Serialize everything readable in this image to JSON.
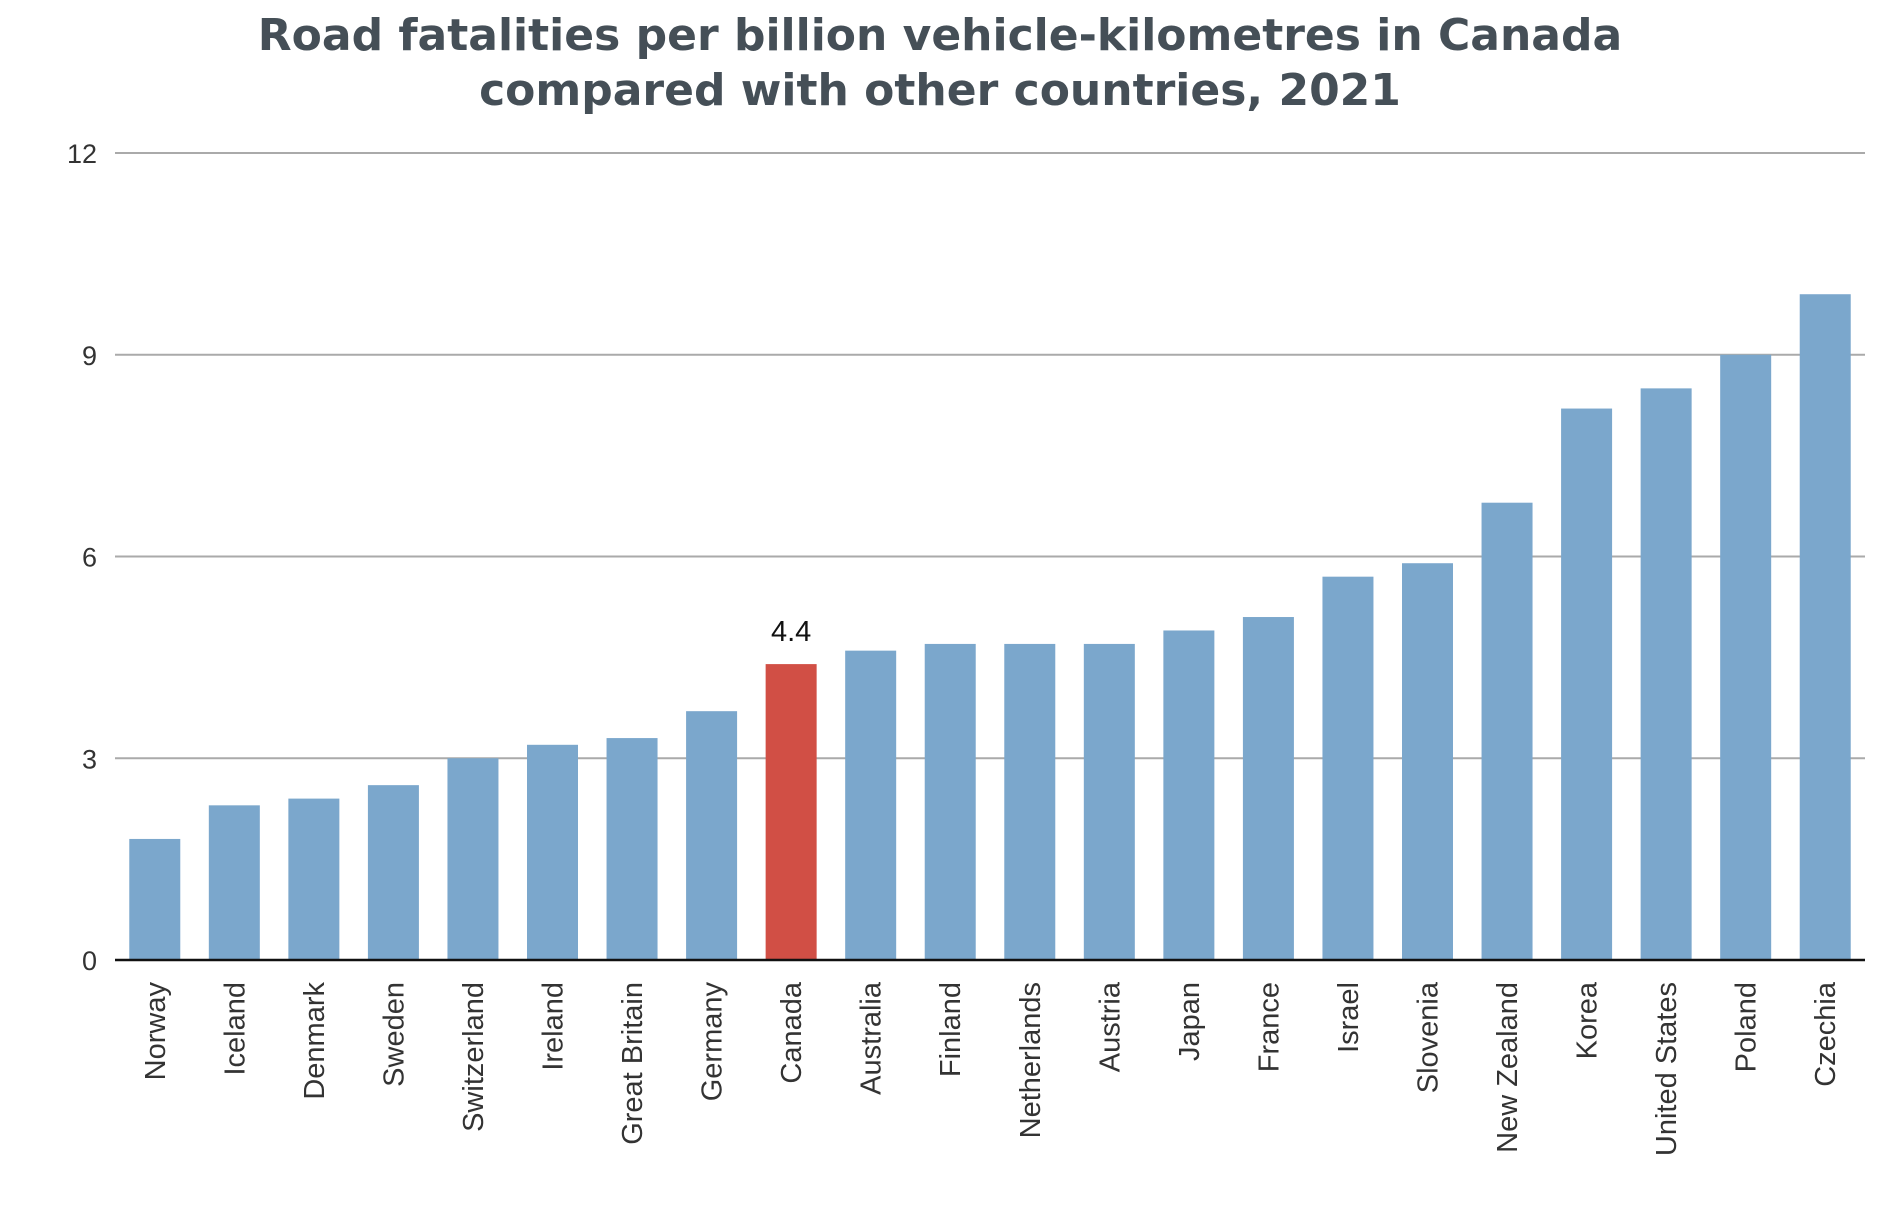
{
  "chart_data": {
    "type": "bar",
    "title_lines": [
      "Road fatalities per billion vehicle-kilometres in Canada",
      "compared with other countries, 2021"
    ],
    "xlabel": "",
    "ylabel": "",
    "ylim": [
      0,
      12
    ],
    "yticks": [
      0,
      3,
      6,
      9,
      12
    ],
    "grid": true,
    "legend": "none",
    "categories": [
      "Norway",
      "Iceland",
      "Denmark",
      "Sweden",
      "Switzerland",
      "Ireland",
      "Great Britain",
      "Germany",
      "Canada",
      "Australia",
      "Finland",
      "Netherlands",
      "Austria",
      "Japan",
      "France",
      "Israel",
      "Slovenia",
      "New Zealand",
      "Korea",
      "United States",
      "Poland",
      "Czechia"
    ],
    "values": [
      1.8,
      2.3,
      2.4,
      2.6,
      3.0,
      3.2,
      3.3,
      3.7,
      4.4,
      4.6,
      4.7,
      4.7,
      4.7,
      4.9,
      5.1,
      5.7,
      5.9,
      6.8,
      8.2,
      8.5,
      9.0,
      9.9
    ],
    "highlight_category": "Canada",
    "data_labels": [
      {
        "category": "Canada",
        "text": "4.4"
      }
    ],
    "colors": {
      "bar": "#7ba7cc",
      "highlight": "#d14f45",
      "grid": "#aaaaaa",
      "axis": "#111111",
      "title": "#454f57"
    }
  }
}
